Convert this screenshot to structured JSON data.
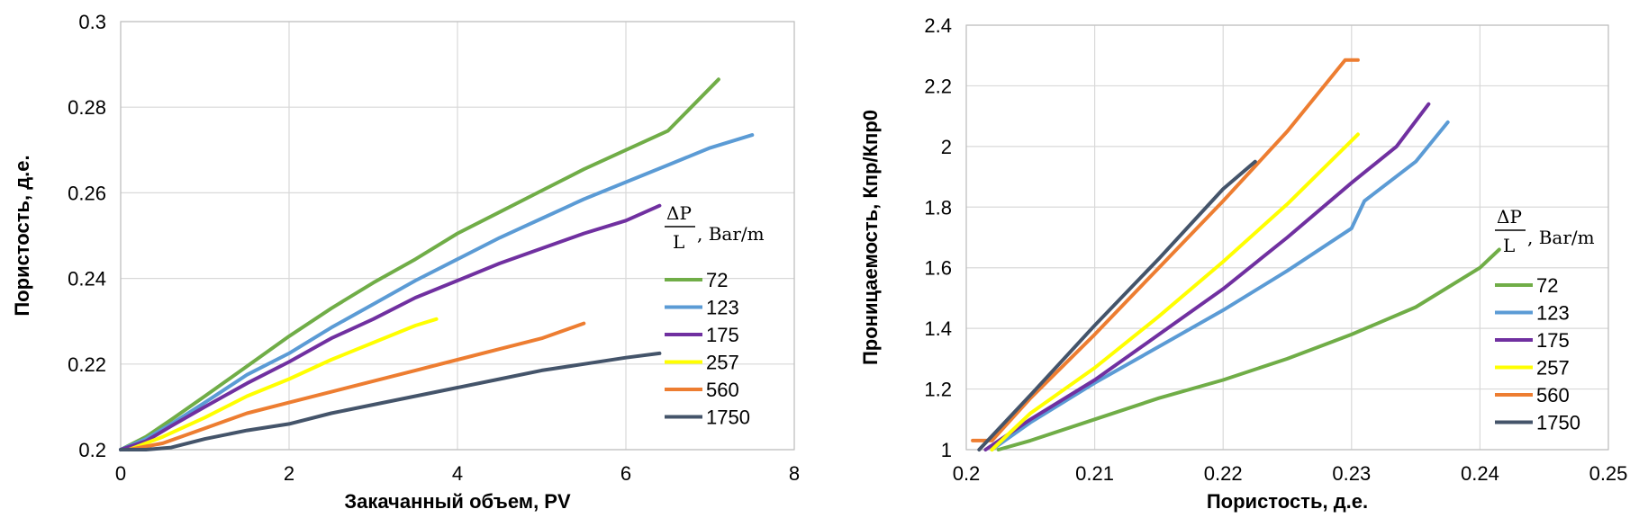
{
  "colors": {
    "72": "#70ad47",
    "123": "#5b9bd5",
    "175": "#7030a0",
    "257": "#ffff00",
    "560": "#ed7d31",
    "1750": "#44546a"
  },
  "chart_data": [
    {
      "type": "line",
      "xlabel": "Закачанный объем, PV",
      "ylabel": "Пористость, д.е.",
      "xlim": [
        0,
        8
      ],
      "ylim": [
        0.2,
        0.3
      ],
      "xticks": [
        "0",
        "2",
        "4",
        "6",
        "8"
      ],
      "yticks": [
        "0.2",
        "0.22",
        "0.24",
        "0.26",
        "0.28",
        "0.3"
      ],
      "grid": true,
      "legend_placement": "right",
      "legend_title": {
        "numerator": "ΔP",
        "denominator": "L",
        "unit": ", Bar/m"
      },
      "series": [
        {
          "name": "72",
          "color": "#70ad47",
          "points": [
            [
              0.0,
              0.2
            ],
            [
              0.3,
              0.203
            ],
            [
              0.6,
              0.207
            ],
            [
              1.0,
              0.2125
            ],
            [
              1.5,
              0.2195
            ],
            [
              2.0,
              0.2265
            ],
            [
              2.5,
              0.233
            ],
            [
              3.0,
              0.239
            ],
            [
              3.5,
              0.2445
            ],
            [
              4.0,
              0.2505
            ],
            [
              4.5,
              0.2555
            ],
            [
              5.0,
              0.2605
            ],
            [
              5.5,
              0.2655
            ],
            [
              6.0,
              0.27
            ],
            [
              6.5,
              0.2745
            ],
            [
              7.1,
              0.2865
            ]
          ]
        },
        {
          "name": "123",
          "color": "#5b9bd5",
          "points": [
            [
              0.0,
              0.2
            ],
            [
              0.3,
              0.2025
            ],
            [
              0.6,
              0.206
            ],
            [
              1.0,
              0.211
            ],
            [
              1.5,
              0.2175
            ],
            [
              2.0,
              0.2225
            ],
            [
              2.5,
              0.2285
            ],
            [
              3.0,
              0.234
            ],
            [
              3.5,
              0.2395
            ],
            [
              4.0,
              0.2445
            ],
            [
              4.5,
              0.2495
            ],
            [
              5.0,
              0.254
            ],
            [
              5.5,
              0.2585
            ],
            [
              6.0,
              0.2625
            ],
            [
              6.5,
              0.2665
            ],
            [
              7.0,
              0.2705
            ],
            [
              7.5,
              0.2735
            ]
          ]
        },
        {
          "name": "175",
          "color": "#7030a0",
          "points": [
            [
              0.0,
              0.2
            ],
            [
              0.3,
              0.202
            ],
            [
              0.6,
              0.2055
            ],
            [
              1.0,
              0.21
            ],
            [
              1.5,
              0.2155
            ],
            [
              2.0,
              0.2205
            ],
            [
              2.5,
              0.226
            ],
            [
              3.0,
              0.2305
            ],
            [
              3.5,
              0.2355
            ],
            [
              4.0,
              0.2395
            ],
            [
              4.5,
              0.2435
            ],
            [
              5.0,
              0.247
            ],
            [
              5.5,
              0.2505
            ],
            [
              6.0,
              0.2535
            ],
            [
              6.4,
              0.257
            ]
          ]
        },
        {
          "name": "257",
          "color": "#ffff00",
          "points": [
            [
              0.1,
              0.2
            ],
            [
              0.5,
              0.203
            ],
            [
              1.0,
              0.2075
            ],
            [
              1.5,
              0.2125
            ],
            [
              2.0,
              0.2165
            ],
            [
              2.5,
              0.221
            ],
            [
              3.0,
              0.225
            ],
            [
              3.5,
              0.229
            ],
            [
              3.75,
              0.2305
            ]
          ]
        },
        {
          "name": "560",
          "color": "#ed7d31",
          "points": [
            [
              0.1,
              0.2
            ],
            [
              0.5,
              0.2015
            ],
            [
              1.0,
              0.205
            ],
            [
              1.5,
              0.2085
            ],
            [
              2.0,
              0.211
            ],
            [
              2.5,
              0.2135
            ],
            [
              3.0,
              0.216
            ],
            [
              3.5,
              0.2185
            ],
            [
              4.0,
              0.221
            ],
            [
              4.5,
              0.2235
            ],
            [
              5.0,
              0.226
            ],
            [
              5.5,
              0.2295
            ]
          ]
        },
        {
          "name": "1750",
          "color": "#44546a",
          "points": [
            [
              0.0,
              0.2
            ],
            [
              0.3,
              0.2
            ],
            [
              0.6,
              0.2005
            ],
            [
              1.0,
              0.2025
            ],
            [
              1.5,
              0.2045
            ],
            [
              2.0,
              0.206
            ],
            [
              2.5,
              0.2085
            ],
            [
              3.0,
              0.2105
            ],
            [
              3.5,
              0.2125
            ],
            [
              4.0,
              0.2145
            ],
            [
              4.5,
              0.2165
            ],
            [
              5.0,
              0.2185
            ],
            [
              5.5,
              0.22
            ],
            [
              6.0,
              0.2215
            ],
            [
              6.4,
              0.2225
            ]
          ]
        }
      ]
    },
    {
      "type": "line",
      "xlabel": "Пористость, д.е.",
      "ylabel": "Проницаемость, Кпр/Кпр0",
      "xlim": [
        0.2,
        0.25
      ],
      "ylim": [
        1,
        2.4
      ],
      "xticks": [
        "0.2",
        "0.21",
        "0.22",
        "0.23",
        "0.24",
        "0.25"
      ],
      "yticks": [
        "1",
        "1.2",
        "1.4",
        "1.6",
        "1.8",
        "2",
        "2.2",
        "2.4"
      ],
      "grid": true,
      "legend_placement": "right",
      "legend_title": {
        "numerator": "ΔP",
        "denominator": "L",
        "unit": ", Bar/m"
      },
      "series": [
        {
          "name": "72",
          "color": "#70ad47",
          "points": [
            [
              0.2025,
              1.0
            ],
            [
              0.205,
              1.03
            ],
            [
              0.21,
              1.1
            ],
            [
              0.215,
              1.17
            ],
            [
              0.22,
              1.23
            ],
            [
              0.225,
              1.3
            ],
            [
              0.23,
              1.38
            ],
            [
              0.235,
              1.47
            ],
            [
              0.24,
              1.6
            ],
            [
              0.2415,
              1.66
            ]
          ]
        },
        {
          "name": "123",
          "color": "#5b9bd5",
          "points": [
            [
              0.202,
              1.0
            ],
            [
              0.205,
              1.09
            ],
            [
              0.21,
              1.22
            ],
            [
              0.215,
              1.34
            ],
            [
              0.22,
              1.46
            ],
            [
              0.225,
              1.59
            ],
            [
              0.23,
              1.73
            ],
            [
              0.231,
              1.82
            ],
            [
              0.235,
              1.95
            ],
            [
              0.2375,
              2.08
            ]
          ]
        },
        {
          "name": "175",
          "color": "#7030a0",
          "points": [
            [
              0.2015,
              1.0
            ],
            [
              0.205,
              1.1
            ],
            [
              0.21,
              1.23
            ],
            [
              0.215,
              1.38
            ],
            [
              0.22,
              1.53
            ],
            [
              0.225,
              1.7
            ],
            [
              0.23,
              1.88
            ],
            [
              0.2335,
              2.0
            ],
            [
              0.236,
              2.14
            ]
          ]
        },
        {
          "name": "257",
          "color": "#ffff00",
          "points": [
            [
              0.202,
              1.0
            ],
            [
              0.205,
              1.12
            ],
            [
              0.21,
              1.27
            ],
            [
              0.215,
              1.44
            ],
            [
              0.22,
              1.62
            ],
            [
              0.225,
              1.81
            ],
            [
              0.2305,
              2.04
            ]
          ]
        },
        {
          "name": "560",
          "color": "#ed7d31",
          "points": [
            [
              0.2005,
              1.03
            ],
            [
              0.202,
              1.03
            ],
            [
              0.205,
              1.17
            ],
            [
              0.21,
              1.38
            ],
            [
              0.215,
              1.6
            ],
            [
              0.22,
              1.82
            ],
            [
              0.225,
              2.05
            ],
            [
              0.2295,
              2.285
            ],
            [
              0.2305,
              2.285
            ]
          ]
        },
        {
          "name": "1750",
          "color": "#44546a",
          "points": [
            [
              0.201,
              1.0
            ],
            [
              0.205,
              1.18
            ],
            [
              0.21,
              1.41
            ],
            [
              0.215,
              1.63
            ],
            [
              0.22,
              1.86
            ],
            [
              0.2225,
              1.95
            ]
          ]
        }
      ]
    }
  ]
}
